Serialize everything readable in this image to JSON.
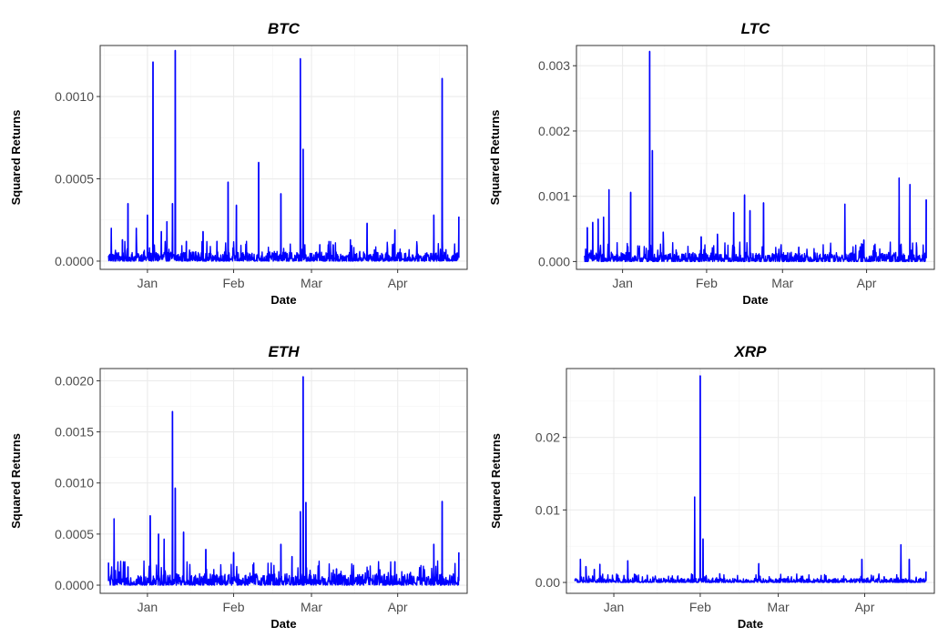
{
  "chart_data": [
    {
      "type": "line",
      "title": "BTC",
      "xlabel": "Date",
      "ylabel": "Squared Returns",
      "color": "#0000ff",
      "x_ticks": [
        "Jan",
        "Feb",
        "Mar",
        "Apr"
      ],
      "y_ticks": [
        "0.0000",
        "0.0005",
        "0.0010"
      ],
      "ylim": [
        -5e-05,
        0.00131
      ],
      "grid": true,
      "series": [
        {
          "baseline": 2e-05,
          "spikes": [
            {
              "x": "Dec 19",
              "y": 0.0002
            },
            {
              "x": "Dec 23",
              "y": 0.00013
            },
            {
              "x": "Dec 25",
              "y": 0.00035
            },
            {
              "x": "Dec 28",
              "y": 0.0002
            },
            {
              "x": "Jan 1",
              "y": 0.00028
            },
            {
              "x": "Jan 3",
              "y": 0.00121
            },
            {
              "x": "Jan 6",
              "y": 0.00018
            },
            {
              "x": "Jan 8",
              "y": 0.00024
            },
            {
              "x": "Jan 10",
              "y": 0.00035
            },
            {
              "x": "Jan 11",
              "y": 0.00128
            },
            {
              "x": "Jan 15",
              "y": 0.00012
            },
            {
              "x": "Jan 21",
              "y": 0.00018
            },
            {
              "x": "Jan 26",
              "y": 0.00012
            },
            {
              "x": "Jan 30",
              "y": 0.00048
            },
            {
              "x": "Feb 2",
              "y": 0.00034
            },
            {
              "x": "Feb 10",
              "y": 0.0006
            },
            {
              "x": "Feb 18",
              "y": 0.00041
            },
            {
              "x": "Feb 25",
              "y": 0.00123
            },
            {
              "x": "Feb 26",
              "y": 0.00068
            },
            {
              "x": "Mar 4",
              "y": 0.0001
            },
            {
              "x": "Mar 15",
              "y": 0.00013
            },
            {
              "x": "Mar 21",
              "y": 0.00023
            },
            {
              "x": "Mar 31",
              "y": 0.00019
            },
            {
              "x": "Apr 14",
              "y": 0.00028
            },
            {
              "x": "Apr 17",
              "y": 0.00111
            },
            {
              "x": "Apr 23",
              "y": 0.00027
            }
          ]
        }
      ]
    },
    {
      "type": "line",
      "title": "LTC",
      "xlabel": "Date",
      "ylabel": "Squared Returns",
      "color": "#0000ff",
      "x_ticks": [
        "Jan",
        "Feb",
        "Mar",
        "Apr"
      ],
      "y_ticks": [
        "0.000",
        "0.001",
        "0.002",
        "0.003"
      ],
      "ylim": [
        -0.00012,
        0.00331
      ],
      "grid": true,
      "series": [
        {
          "baseline": 5e-05,
          "spikes": [
            {
              "x": "Dec 19",
              "y": 0.00052
            },
            {
              "x": "Dec 21",
              "y": 0.0006
            },
            {
              "x": "Dec 23",
              "y": 0.00065
            },
            {
              "x": "Dec 25",
              "y": 0.00068
            },
            {
              "x": "Dec 27",
              "y": 0.0011
            },
            {
              "x": "Jan 4",
              "y": 0.00106
            },
            {
              "x": "Jan 11",
              "y": 0.00322
            },
            {
              "x": "Jan 12",
              "y": 0.0017
            },
            {
              "x": "Jan 16",
              "y": 0.00045
            },
            {
              "x": "Jan 30",
              "y": 0.00038
            },
            {
              "x": "Feb 5",
              "y": 0.00042
            },
            {
              "x": "Feb 11",
              "y": 0.00075
            },
            {
              "x": "Feb 15",
              "y": 0.00102
            },
            {
              "x": "Feb 17",
              "y": 0.00078
            },
            {
              "x": "Feb 22",
              "y": 0.0009
            },
            {
              "x": "Mar 7",
              "y": 0.00022
            },
            {
              "x": "Mar 24",
              "y": 0.00088
            },
            {
              "x": "Mar 31",
              "y": 0.00033
            },
            {
              "x": "Apr 13",
              "y": 0.00128
            },
            {
              "x": "Apr 17",
              "y": 0.00118
            },
            {
              "x": "Apr 23",
              "y": 0.00095
            }
          ]
        }
      ]
    },
    {
      "type": "line",
      "title": "ETH",
      "xlabel": "Date",
      "ylabel": "Squared Returns",
      "color": "#0000ff",
      "x_ticks": [
        "Jan",
        "Feb",
        "Mar",
        "Apr"
      ],
      "y_ticks": [
        "0.0000",
        "0.0005",
        "0.0010",
        "0.0015",
        "0.0020"
      ],
      "ylim": [
        -8e-05,
        0.00212
      ],
      "grid": true,
      "series": [
        {
          "baseline": 4e-05,
          "spikes": [
            {
              "x": "Dec 18",
              "y": 0.00022
            },
            {
              "x": "Dec 20",
              "y": 0.00065
            },
            {
              "x": "Dec 25",
              "y": 0.00018
            },
            {
              "x": "Jan 2",
              "y": 0.00068
            },
            {
              "x": "Jan 5",
              "y": 0.0005
            },
            {
              "x": "Jan 7",
              "y": 0.00045
            },
            {
              "x": "Jan 10",
              "y": 0.0017
            },
            {
              "x": "Jan 11",
              "y": 0.00095
            },
            {
              "x": "Jan 14",
              "y": 0.00052
            },
            {
              "x": "Jan 22",
              "y": 0.00035
            },
            {
              "x": "Feb 1",
              "y": 0.00032
            },
            {
              "x": "Feb 8",
              "y": 0.0002
            },
            {
              "x": "Feb 18",
              "y": 0.0004
            },
            {
              "x": "Feb 22",
              "y": 0.00028
            },
            {
              "x": "Feb 25",
              "y": 0.00072
            },
            {
              "x": "Feb 26",
              "y": 0.00204
            },
            {
              "x": "Feb 27",
              "y": 0.00081
            },
            {
              "x": "Mar 10",
              "y": 0.00016
            },
            {
              "x": "Mar 31",
              "y": 0.00023
            },
            {
              "x": "Apr 14",
              "y": 0.0004
            },
            {
              "x": "Apr 17",
              "y": 0.00082
            },
            {
              "x": "Apr 23",
              "y": 0.00032
            }
          ]
        }
      ]
    },
    {
      "type": "line",
      "title": "XRP",
      "xlabel": "Date",
      "ylabel": "Squared Returns",
      "color": "#0000ff",
      "x_ticks": [
        "Jan",
        "Feb",
        "Mar",
        "Apr"
      ],
      "y_ticks": [
        "0.00",
        "0.01",
        "0.02"
      ],
      "ylim": [
        -0.0015,
        0.0295
      ],
      "grid": true,
      "series": [
        {
          "baseline": 0.0002,
          "spikes": [
            {
              "x": "Dec 20",
              "y": 0.0032
            },
            {
              "x": "Dec 22",
              "y": 0.0022
            },
            {
              "x": "Dec 25",
              "y": 0.0018
            },
            {
              "x": "Dec 27",
              "y": 0.0025
            },
            {
              "x": "Jan 6",
              "y": 0.003
            },
            {
              "x": "Jan 13",
              "y": 0.001
            },
            {
              "x": "Jan 30",
              "y": 0.0118
            },
            {
              "x": "Feb 1",
              "y": 0.0285
            },
            {
              "x": "Feb 2",
              "y": 0.006
            },
            {
              "x": "Feb 8",
              "y": 0.0012
            },
            {
              "x": "Feb 22",
              "y": 0.0026
            },
            {
              "x": "Mar 10",
              "y": 0.0004
            },
            {
              "x": "Mar 31",
              "y": 0.0032
            },
            {
              "x": "Apr 8",
              "y": 0.0008
            },
            {
              "x": "Apr 14",
              "y": 0.0052
            },
            {
              "x": "Apr 17",
              "y": 0.0032
            },
            {
              "x": "Apr 23",
              "y": 0.0015
            }
          ]
        }
      ]
    }
  ]
}
